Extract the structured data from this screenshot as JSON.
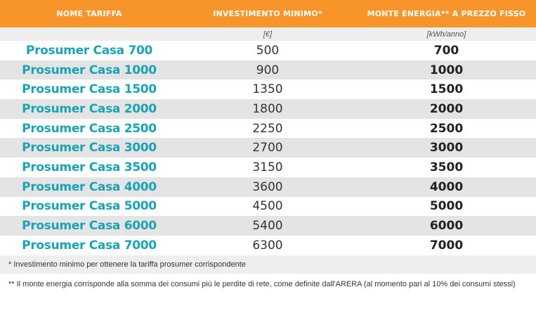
{
  "headers": {
    "name": "NOME TARIFFA",
    "investment": "INVESTIMENTO MINIMO*",
    "energy": "MONTE ENERGIA** A PREZZO FISSO"
  },
  "units": {
    "name": "",
    "investment": "[€]",
    "energy": "[kWh/anno]"
  },
  "rows": [
    {
      "name": "Prosumer Casa 700",
      "investment": "500",
      "energy": "700"
    },
    {
      "name": "Prosumer Casa 1000",
      "investment": "900",
      "energy": "1000"
    },
    {
      "name": "Prosumer Casa 1500",
      "investment": "1350",
      "energy": "1500"
    },
    {
      "name": "Prosumer Casa 2000",
      "investment": "1800",
      "energy": "2000"
    },
    {
      "name": "Prosumer Casa 2500",
      "investment": "2250",
      "energy": "2500"
    },
    {
      "name": "Prosumer Casa 3000",
      "investment": "2700",
      "energy": "3000"
    },
    {
      "name": "Prosumer Casa 3500",
      "investment": "3150",
      "energy": "3500"
    },
    {
      "name": "Prosumer Casa 4000",
      "investment": "3600",
      "energy": "4000"
    },
    {
      "name": "Prosumer Casa 5000",
      "investment": "4500",
      "energy": "5000"
    },
    {
      "name": "Prosumer Casa 6000",
      "investment": "5400",
      "energy": "6000"
    },
    {
      "name": "Prosumer Casa 7000",
      "investment": "6300",
      "energy": "7000"
    }
  ],
  "notes": {
    "investment": "* Investimento minimo per ottenere la tariffa prosumer corrispondente",
    "energy": "** Il monte energia corrisponde alla somma dei consumi più le perdite di rete, come definite dall'ARERA (al momento pari al 10% dei consumi stessi)"
  },
  "colors": {
    "header_bg": "#f7942a",
    "name_text": "#1aa3b4",
    "stripe": "#e4e4e4"
  }
}
